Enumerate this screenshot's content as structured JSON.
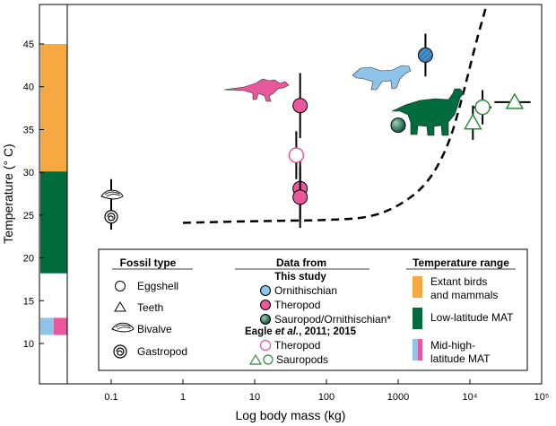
{
  "chart_data": {
    "type": "scatter",
    "title": "",
    "xlabel": "Log body mass (kg)",
    "ylabel": "Temperature (° C)",
    "x_scale": "log",
    "xlim": [
      0.01,
      100000
    ],
    "ylim": [
      7,
      50
    ],
    "x_ticks": [
      {
        "value": 0.1,
        "label": "0.1"
      },
      {
        "value": 1,
        "label": "1"
      },
      {
        "value": 10,
        "label": "10"
      },
      {
        "value": 100,
        "label": "100"
      },
      {
        "value": 1000,
        "label": "1000"
      },
      {
        "value": 10000,
        "label": "10⁴"
      },
      {
        "value": 100000,
        "label": "10⁵"
      }
    ],
    "y_ticks": [
      {
        "value": 10,
        "label": "10"
      },
      {
        "value": 15,
        "label": "15"
      },
      {
        "value": 20,
        "label": "20"
      },
      {
        "value": 25,
        "label": "25"
      },
      {
        "value": 30,
        "label": "30"
      },
      {
        "value": 35,
        "label": "35"
      },
      {
        "value": 40,
        "label": "40"
      },
      {
        "value": 45,
        "label": "45"
      }
    ],
    "temperature_ranges": [
      {
        "name": "Extant birds and mammals",
        "y_min": 30.1,
        "y_max": 45,
        "color": "#f7a941"
      },
      {
        "name": "Low-latitude MAT",
        "y_min": 18.2,
        "y_max": 30.1,
        "color": "#006b3c"
      },
      {
        "name": "Mid-high-latitude MAT",
        "y_min": 11,
        "y_max": 13,
        "colors": [
          "#8ec3ea",
          "#e8589a"
        ]
      }
    ],
    "series": [
      {
        "name": "Ornithischian (this study)",
        "marker": "circle-hatched",
        "fill": "#4a90c8",
        "points": [
          {
            "x": 2400,
            "y": 43.7,
            "y_err": 2.5
          }
        ]
      },
      {
        "name": "Theropod (this study)",
        "marker": "circle",
        "fill": "#e8589a",
        "points": [
          {
            "x": 43,
            "y": 37.8,
            "y_err": 3.8
          },
          {
            "x": 43,
            "y": 28.1,
            "y_err": 3.5
          },
          {
            "x": 43,
            "y": 27.1,
            "y_err": 3.6
          }
        ]
      },
      {
        "name": "Sauropod/Ornithischian* (this study)",
        "marker": "circle-gradient",
        "fill": "#1f6b4a",
        "points": [
          {
            "x": 1000,
            "y": 35.5,
            "y_err": 0
          }
        ]
      },
      {
        "name": "Theropod (Eagle et al., 2011; 2015)",
        "marker": "circle-open",
        "stroke": "#e8589a",
        "points": [
          {
            "x": 38,
            "y": 32.0,
            "y_err": 2.8
          }
        ]
      },
      {
        "name": "Sauropods (Eagle et al., 2011; 2015)",
        "marker": "circle-open",
        "stroke": "#2e8b3e",
        "points": [
          {
            "x": 15000,
            "y": 37.6,
            "y_err": 2.0,
            "x_err": [
              11000,
              20000
            ]
          }
        ]
      },
      {
        "name": "Sauropods teeth (Eagle et al., 2011; 2015)",
        "marker": "triangle-open",
        "stroke": "#2e8b3e",
        "points": [
          {
            "x": 11000,
            "y": 35.8,
            "y_err": 2.0
          },
          {
            "x": 42000,
            "y": 38.2,
            "y_err": 0,
            "x_err": [
              22000,
              70000
            ]
          }
        ]
      },
      {
        "name": "Bivalve (fossil type)",
        "marker": "bivalve",
        "stroke": "#000000",
        "points": [
          {
            "x": 0.1,
            "y": 27.2,
            "y_err": 2.0
          }
        ]
      },
      {
        "name": "Gastropod (fossil type)",
        "marker": "gastropod",
        "stroke": "#000000",
        "points": [
          {
            "x": 0.1,
            "y": 24.8,
            "y_err": 1.5
          }
        ]
      }
    ],
    "trend_line": {
      "name": "dashed curve",
      "style": "dashed",
      "points": [
        [
          1,
          24.1
        ],
        [
          10,
          24.3
        ],
        [
          100,
          24.4
        ],
        [
          400,
          24.7
        ],
        [
          1000,
          26.0
        ],
        [
          2500,
          28.5
        ],
        [
          5000,
          33.0
        ],
        [
          8000,
          39.0
        ],
        [
          12000,
          45.0
        ],
        [
          17000,
          49.5
        ]
      ]
    },
    "silhouettes": [
      {
        "name": "theropod-silhouette",
        "color": "#e8589a"
      },
      {
        "name": "ornithischian-silhouette",
        "color": "#8ec3ea"
      },
      {
        "name": "sauropod-silhouette",
        "color": "#006b3c"
      }
    ],
    "legend": {
      "position": "bottom-right",
      "fossil_type": {
        "title": "Fossil type",
        "items": [
          "Eggshell",
          "Teeth",
          "Bivalve",
          "Gastropod"
        ]
      },
      "data_from": {
        "title": "Data from",
        "this_study_heading": "This study",
        "this_study_items": [
          {
            "label": "Ornithischian",
            "color": "#4a90c8"
          },
          {
            "label": "Theropod",
            "color": "#e8589a"
          },
          {
            "label": "Sauropod/Ornithischian*",
            "color": "#1f6b4a"
          }
        ],
        "eagle_heading_name": "Eagle",
        "eagle_heading_etal": "et al.",
        "eagle_heading_years": ", 2011; 2015",
        "eagle_items": [
          {
            "label": "Theropod",
            "color": "#e8589a"
          },
          {
            "label": "Sauropods",
            "color": "#2e8b3e"
          }
        ]
      },
      "temperature_range": {
        "title": "Temperature range",
        "items": [
          {
            "lines": [
              "Extant birds",
              "and mammals"
            ],
            "color": "#f7a941"
          },
          {
            "lines": [
              "Low-latitude MAT"
            ],
            "color": "#006b3c"
          },
          {
            "lines": [
              "Mid-high-",
              "latitude MAT"
            ],
            "colors": [
              "#8ec3ea",
              "#e8589a"
            ]
          }
        ]
      }
    }
  }
}
